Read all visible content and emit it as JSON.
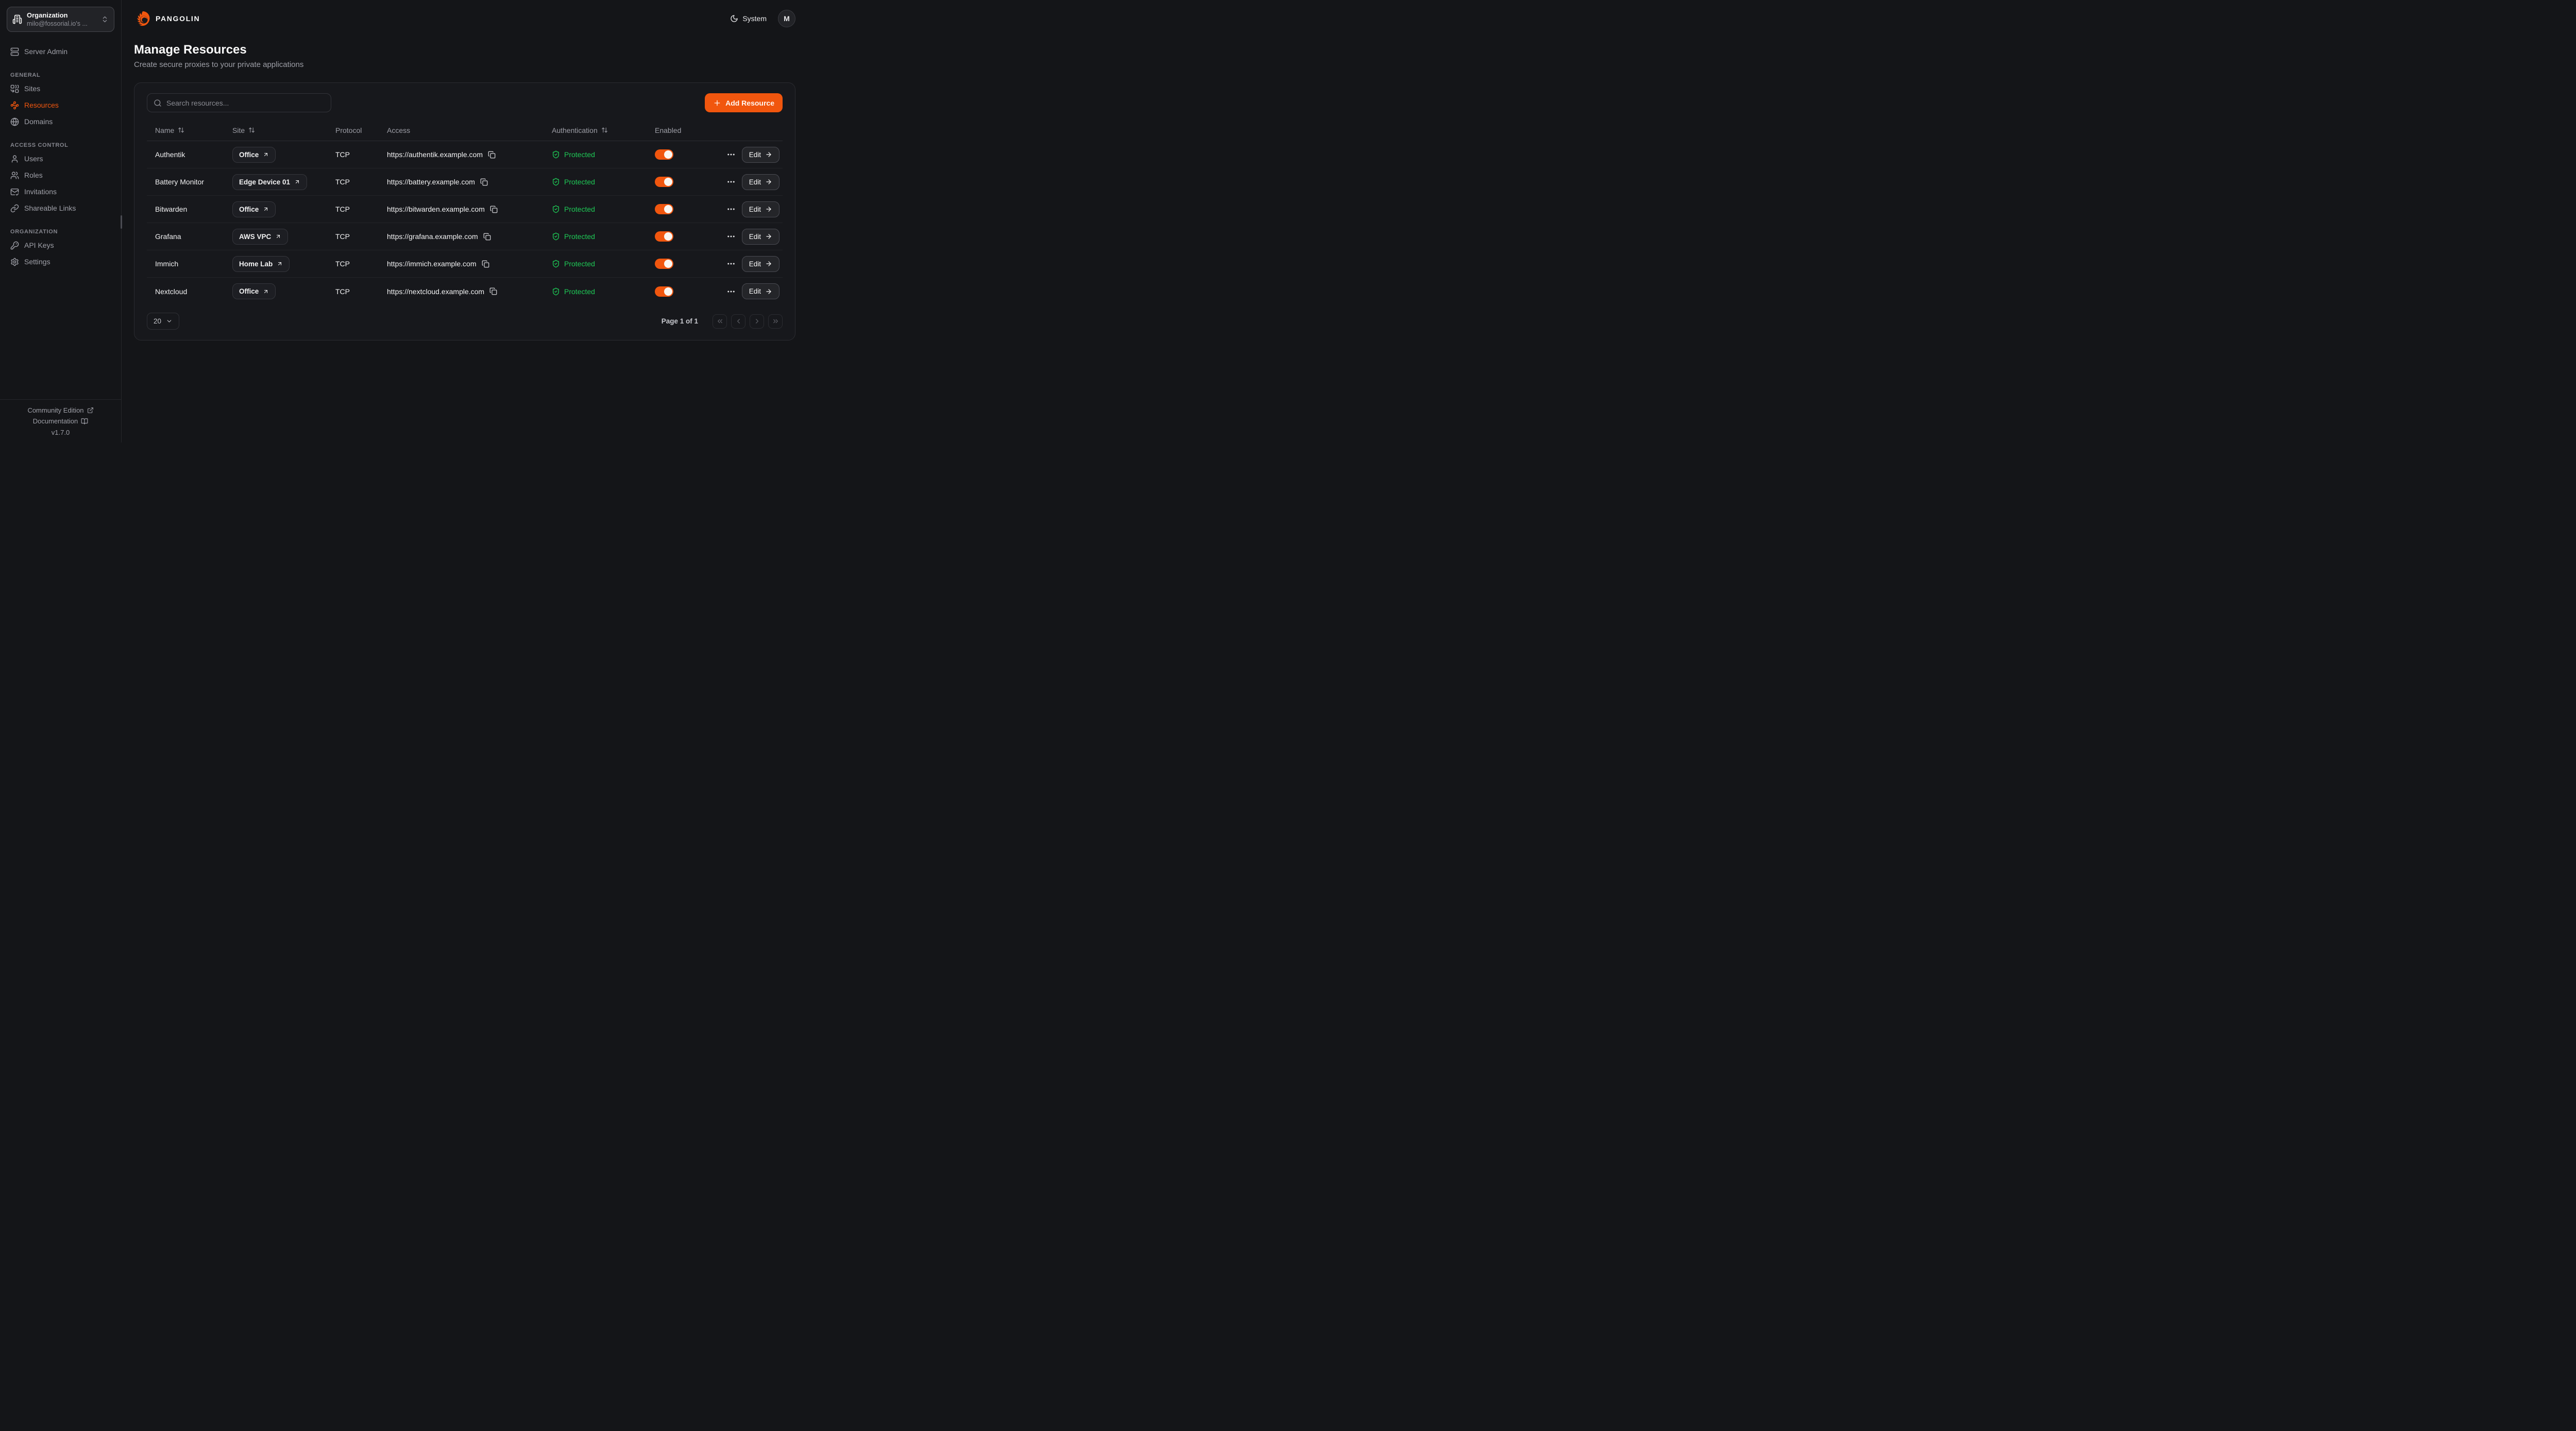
{
  "brand": {
    "wordmark": "PANGOLIN"
  },
  "topbar": {
    "theme_label": "System",
    "avatar_initial": "M"
  },
  "org_selector": {
    "title": "Organization",
    "subtitle": "milo@fossorial.io's ..."
  },
  "sidebar": {
    "standalone": {
      "icon": "server-icon",
      "label": "Server Admin"
    },
    "sections": [
      {
        "heading": "GENERAL",
        "items": [
          {
            "icon": "sites-icon",
            "label": "Sites",
            "active": false
          },
          {
            "icon": "resources-icon",
            "label": "Resources",
            "active": true
          },
          {
            "icon": "globe-icon",
            "label": "Domains",
            "active": false
          }
        ]
      },
      {
        "heading": "ACCESS CONTROL",
        "items": [
          {
            "icon": "user-icon",
            "label": "Users",
            "active": false
          },
          {
            "icon": "users-icon",
            "label": "Roles",
            "active": false
          },
          {
            "icon": "mail-check-icon",
            "label": "Invitations",
            "active": false
          },
          {
            "icon": "link-icon",
            "label": "Shareable Links",
            "active": false
          }
        ]
      },
      {
        "heading": "ORGANIZATION",
        "items": [
          {
            "icon": "key-icon",
            "label": "API Keys",
            "active": false
          },
          {
            "icon": "gear-icon",
            "label": "Settings",
            "active": false
          }
        ]
      }
    ],
    "footer": {
      "community": "Community Edition",
      "documentation": "Documentation",
      "version": "v1.7.0"
    }
  },
  "page": {
    "title": "Manage Resources",
    "subtitle": "Create secure proxies to your private applications"
  },
  "toolbar": {
    "search_placeholder": "Search resources...",
    "add_resource_label": "Add Resource"
  },
  "table": {
    "columns": [
      {
        "label": "Name",
        "sortable": true
      },
      {
        "label": "Site",
        "sortable": true
      },
      {
        "label": "Protocol",
        "sortable": false
      },
      {
        "label": "Access",
        "sortable": false
      },
      {
        "label": "Authentication",
        "sortable": true
      },
      {
        "label": "Enabled",
        "sortable": false
      },
      {
        "label": "",
        "sortable": false
      }
    ],
    "rows": [
      {
        "name": "Authentik",
        "site": "Office",
        "protocol": "TCP",
        "access": "https://authentik.example.com",
        "authentication": "Protected",
        "enabled": true,
        "edit_label": "Edit"
      },
      {
        "name": "Battery Monitor",
        "site": "Edge Device 01",
        "protocol": "TCP",
        "access": "https://battery.example.com",
        "authentication": "Protected",
        "enabled": true,
        "edit_label": "Edit"
      },
      {
        "name": "Bitwarden",
        "site": "Office",
        "protocol": "TCP",
        "access": "https://bitwarden.example.com",
        "authentication": "Protected",
        "enabled": true,
        "edit_label": "Edit"
      },
      {
        "name": "Grafana",
        "site": "AWS VPC",
        "protocol": "TCP",
        "access": "https://grafana.example.com",
        "authentication": "Protected",
        "enabled": true,
        "edit_label": "Edit"
      },
      {
        "name": "Immich",
        "site": "Home Lab",
        "protocol": "TCP",
        "access": "https://immich.example.com",
        "authentication": "Protected",
        "enabled": true,
        "edit_label": "Edit"
      },
      {
        "name": "Nextcloud",
        "site": "Office",
        "protocol": "TCP",
        "access": "https://nextcloud.example.com",
        "authentication": "Protected",
        "enabled": true,
        "edit_label": "Edit"
      }
    ]
  },
  "pagination": {
    "page_size": "20",
    "page_info": "Page 1 of 1"
  },
  "colors": {
    "accent": "#f1560e",
    "protected_green": "#1ec956",
    "background": "#141518",
    "card_border": "#2b2c31"
  }
}
